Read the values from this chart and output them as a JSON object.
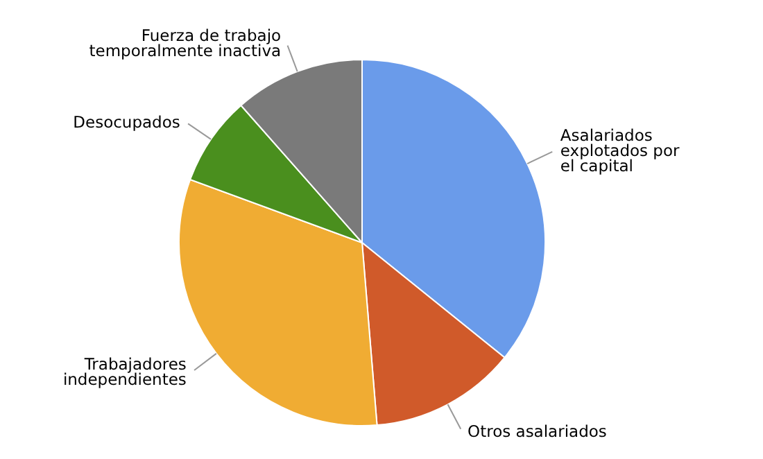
{
  "chart_data": {
    "type": "pie",
    "categories": [
      "Asalariados\nexplotados por\nel capital",
      "Otros asalariados",
      "Trabajadores\nindependientes",
      "Desocupados",
      "Fuerza de trabajo\ntemporalmente inactiva"
    ],
    "values": [
      35.8,
      12.9,
      31.9,
      7.9,
      11.5
    ],
    "colors": [
      "#6a9bea",
      "#d05a2a",
      "#f0ac33",
      "#4a8f1e",
      "#7a7a7a"
    ]
  }
}
